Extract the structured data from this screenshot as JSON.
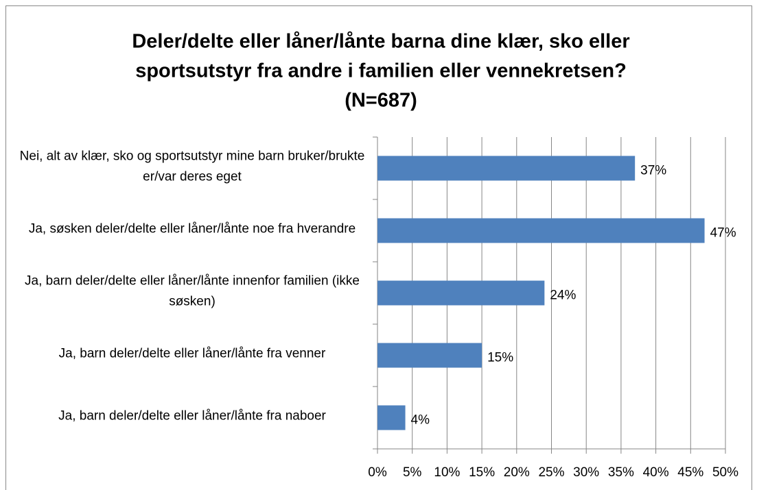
{
  "chart_data": {
    "type": "barh",
    "title": [
      "Deler/delte eller låner/lånte barna dine klær, sko eller",
      "sportsutstyr fra andre i familien eller vennekretsen?",
      "(N=687)"
    ],
    "categories": [
      "Nei, alt av klær, sko og sportsutstyr mine barn bruker/brukte er/var deres eget",
      "Ja, søsken deler/delte eller låner/lånte noe fra hverandre",
      "Ja, barn deler/delte eller låner/lånte innenfor familien (ikke søsken)",
      "Ja, barn deler/delte eller låner/lånte fra venner",
      "Ja, barn deler/delte eller låner/lånte fra naboer"
    ],
    "values": [
      37,
      47,
      24,
      15,
      4
    ],
    "value_labels": [
      "37%",
      "47%",
      "24%",
      "15%",
      "4%"
    ],
    "color": "#4f81bd",
    "xlim": [
      0,
      50
    ],
    "xticks": [
      {
        "value": 0,
        "label": "0%"
      },
      {
        "value": 5,
        "label": "5%"
      },
      {
        "value": 10,
        "label": "10%"
      },
      {
        "value": 15,
        "label": "15%"
      },
      {
        "value": 20,
        "label": "20%"
      },
      {
        "value": 25,
        "label": "25%"
      },
      {
        "value": 30,
        "label": "30%"
      },
      {
        "value": 35,
        "label": "35%"
      },
      {
        "value": 40,
        "label": "40%"
      },
      {
        "value": 45,
        "label": "45%"
      },
      {
        "value": 50,
        "label": "50%"
      }
    ],
    "grid": true
  }
}
